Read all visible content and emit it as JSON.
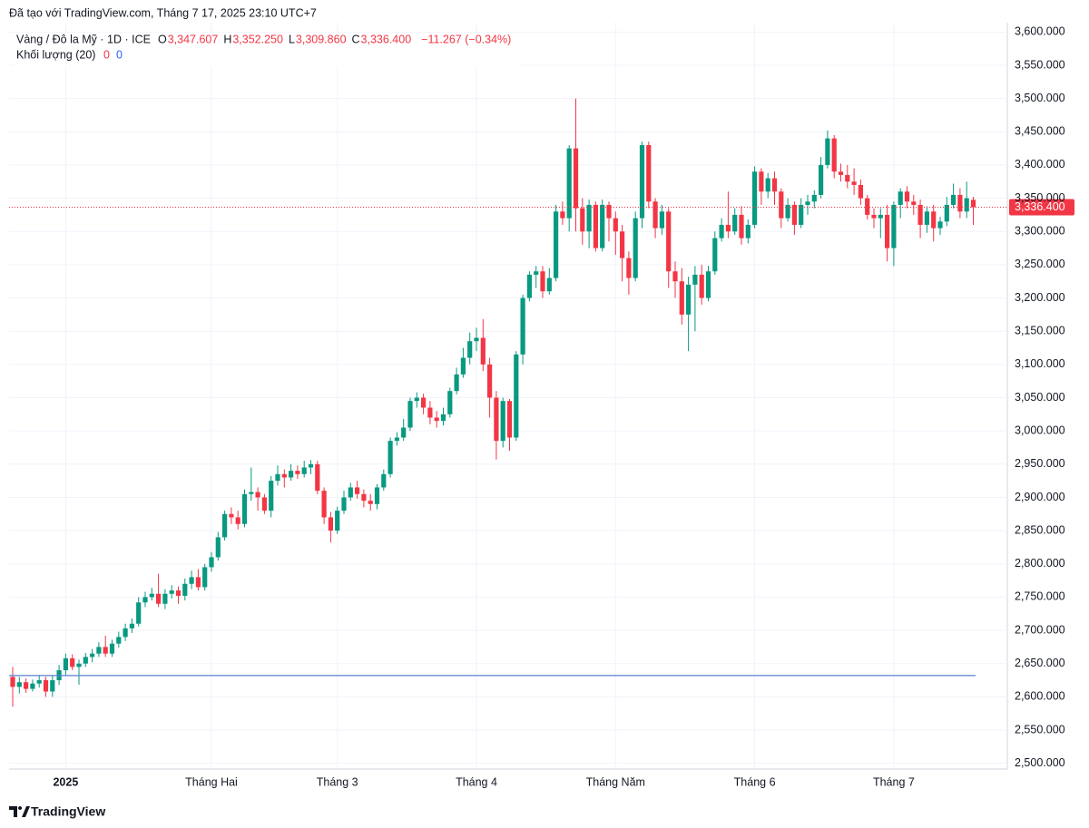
{
  "header": {
    "credit": "Đã tạo với TradingView.com, Tháng 7 17, 2025 23:10 UTC+7",
    "footer": "TradingView"
  },
  "legend": {
    "symbol": "Vàng / Đô la Mỹ · 1D · ICE",
    "o_label": "O",
    "o": "3,347.607",
    "h_label": "H",
    "h": "3,352.250",
    "l_label": "L",
    "l": "3,309.860",
    "c_label": "C",
    "c": "3,336.400",
    "change": "−11.267 (−0.34%)",
    "volume_label": "Khối lượng (20)",
    "volume_a": "0",
    "volume_b": "0"
  },
  "chart_data": {
    "type": "candlestick",
    "up_color": "#089981",
    "down_color": "#f23645",
    "grid": true,
    "categories": [
      null,
      null,
      null,
      null,
      null,
      null,
      null,
      null,
      "2025",
      null,
      null,
      null,
      null,
      null,
      null,
      null,
      null,
      null,
      null,
      null,
      null,
      null,
      null,
      null,
      null,
      null,
      null,
      null,
      null,
      null,
      "Tháng Hai",
      null,
      null,
      null,
      null,
      null,
      null,
      null,
      null,
      null,
      null,
      null,
      null,
      null,
      null,
      null,
      null,
      null,
      null,
      "Tháng 3",
      null,
      null,
      null,
      null,
      null,
      null,
      null,
      null,
      null,
      null,
      null,
      null,
      null,
      null,
      null,
      null,
      null,
      null,
      null,
      null,
      "Tháng 4",
      null,
      null,
      null,
      null,
      null,
      null,
      null,
      null,
      null,
      null,
      null,
      null,
      null,
      null,
      null,
      null,
      null,
      null,
      null,
      null,
      "Tháng Năm",
      null,
      null,
      null,
      null,
      null,
      null,
      null,
      null,
      null,
      null,
      null,
      null,
      null,
      null,
      null,
      null,
      null,
      null,
      null,
      null,
      "Tháng 6",
      null,
      null,
      null,
      null,
      null,
      null,
      null,
      null,
      null,
      null,
      null,
      null,
      null,
      null,
      null,
      null,
      null,
      null,
      null,
      null,
      "Tháng 7",
      null,
      null,
      null,
      null,
      null,
      null,
      null,
      null,
      null,
      null,
      null,
      null
    ],
    "open": [
      2630,
      2615,
      2622,
      2612,
      2620,
      2625,
      2608,
      2625,
      2640,
      2658,
      2645,
      2650,
      2660,
      2665,
      2675,
      2665,
      2680,
      2690,
      2703,
      2710,
      2742,
      2750,
      2755,
      2740,
      2755,
      2760,
      2752,
      2770,
      2780,
      2765,
      2795,
      2810,
      2840,
      2875,
      2870,
      2860,
      2905,
      2908,
      2900,
      2880,
      2925,
      2935,
      2930,
      2940,
      2935,
      2945,
      2950,
      2910,
      2870,
      2850,
      2880,
      2900,
      2915,
      2905,
      2895,
      2890,
      2915,
      2935,
      2985,
      2990,
      3005,
      3045,
      3050,
      3035,
      3020,
      3015,
      3025,
      3060,
      3085,
      3110,
      3135,
      3140,
      3100,
      3050,
      2985,
      3045,
      2990,
      3115,
      3200,
      3235,
      3240,
      3210,
      3230,
      3330,
      3320,
      3425,
      3335,
      3300,
      3340,
      3275,
      3340,
      3320,
      3300,
      3260,
      3230,
      3320,
      3430,
      3345,
      3305,
      3330,
      3240,
      3225,
      3175,
      3220,
      3235,
      3200,
      3240,
      3290,
      3310,
      3300,
      3325,
      3290,
      3310,
      3390,
      3360,
      3380,
      3360,
      3320,
      3340,
      3310,
      3340,
      3345,
      3355,
      3400,
      3440,
      3390,
      3385,
      3375,
      3370,
      3350,
      3325,
      3320,
      3325,
      3275,
      3340,
      3360,
      3345,
      3340,
      3310,
      3330,
      3305,
      3315,
      3340,
      3355,
      3330,
      3347.607
    ],
    "high": [
      2645,
      2630,
      2628,
      2626,
      2632,
      2630,
      2632,
      2648,
      2665,
      2664,
      2656,
      2666,
      2672,
      2682,
      2692,
      2686,
      2698,
      2710,
      2718,
      2750,
      2758,
      2764,
      2785,
      2762,
      2768,
      2766,
      2778,
      2790,
      2792,
      2800,
      2818,
      2848,
      2880,
      2885,
      2880,
      2912,
      2945,
      2915,
      2905,
      2932,
      2948,
      2942,
      2950,
      2948,
      2955,
      2956,
      2955,
      2915,
      2878,
      2886,
      2910,
      2922,
      2925,
      2912,
      2905,
      2920,
      2942,
      2990,
      2998,
      3018,
      3050,
      3058,
      3056,
      3045,
      3030,
      3035,
      3065,
      3095,
      3125,
      3148,
      3155,
      3168,
      3110,
      3060,
      3050,
      3048,
      3120,
      3205,
      3240,
      3248,
      3248,
      3245,
      3340,
      3345,
      3430,
      3500,
      3350,
      3348,
      3345,
      3348,
      3345,
      3330,
      3310,
      3270,
      3330,
      3435,
      3435,
      3350,
      3340,
      3335,
      3255,
      3245,
      3232,
      3248,
      3250,
      3248,
      3300,
      3320,
      3360,
      3335,
      3338,
      3318,
      3398,
      3395,
      3388,
      3390,
      3365,
      3350,
      3345,
      3350,
      3355,
      3362,
      3412,
      3452,
      3445,
      3402,
      3400,
      3395,
      3378,
      3355,
      3335,
      3335,
      3340,
      3345,
      3365,
      3368,
      3355,
      3348,
      3338,
      3340,
      3322,
      3352,
      3372,
      3365,
      3375,
      3352.25
    ],
    "low": [
      2585,
      2605,
      2606,
      2608,
      2614,
      2600,
      2600,
      2618,
      2632,
      2640,
      2618,
      2645,
      2652,
      2660,
      2660,
      2660,
      2674,
      2684,
      2696,
      2706,
      2735,
      2745,
      2735,
      2732,
      2748,
      2740,
      2745,
      2762,
      2760,
      2760,
      2788,
      2805,
      2835,
      2860,
      2852,
      2855,
      2895,
      2880,
      2875,
      2870,
      2918,
      2915,
      2925,
      2928,
      2930,
      2935,
      2905,
      2860,
      2832,
      2845,
      2875,
      2895,
      2898,
      2885,
      2880,
      2882,
      2910,
      2930,
      2978,
      2985,
      3000,
      3035,
      3025,
      3010,
      3005,
      3008,
      3020,
      3055,
      3080,
      3100,
      3120,
      3090,
      3020,
      2957,
      2975,
      2970,
      2985,
      3100,
      3195,
      3215,
      3200,
      3205,
      3225,
      3310,
      3300,
      3300,
      3280,
      3275,
      3270,
      3270,
      3285,
      3265,
      3225,
      3205,
      3225,
      3305,
      3335,
      3290,
      3295,
      3215,
      3200,
      3160,
      3120,
      3150,
      3190,
      3195,
      3235,
      3285,
      3290,
      3295,
      3280,
      3282,
      3305,
      3340,
      3350,
      3340,
      3305,
      3315,
      3295,
      3305,
      3325,
      3335,
      3350,
      3395,
      3380,
      3375,
      3365,
      3355,
      3340,
      3318,
      3305,
      3290,
      3255,
      3248,
      3320,
      3335,
      3325,
      3290,
      3298,
      3285,
      3295,
      3308,
      3335,
      3320,
      3320,
      3309.86
    ],
    "close": [
      2615,
      2622,
      2612,
      2620,
      2625,
      2608,
      2625,
      2640,
      2658,
      2645,
      2650,
      2660,
      2665,
      2675,
      2665,
      2680,
      2690,
      2703,
      2710,
      2742,
      2750,
      2755,
      2740,
      2755,
      2760,
      2752,
      2770,
      2780,
      2765,
      2795,
      2810,
      2840,
      2875,
      2870,
      2860,
      2905,
      2908,
      2900,
      2880,
      2925,
      2935,
      2930,
      2940,
      2935,
      2945,
      2950,
      2910,
      2870,
      2850,
      2880,
      2900,
      2915,
      2905,
      2895,
      2890,
      2915,
      2935,
      2985,
      2990,
      3005,
      3045,
      3050,
      3035,
      3020,
      3015,
      3025,
      3060,
      3085,
      3110,
      3135,
      3140,
      3100,
      3050,
      2985,
      3045,
      2990,
      3115,
      3200,
      3235,
      3240,
      3210,
      3230,
      3330,
      3320,
      3425,
      3335,
      3300,
      3340,
      3275,
      3340,
      3320,
      3300,
      3260,
      3230,
      3320,
      3430,
      3345,
      3305,
      3330,
      3240,
      3225,
      3175,
      3220,
      3235,
      3200,
      3240,
      3290,
      3310,
      3300,
      3325,
      3290,
      3310,
      3390,
      3360,
      3380,
      3360,
      3320,
      3340,
      3310,
      3340,
      3345,
      3355,
      3400,
      3440,
      3390,
      3385,
      3375,
      3370,
      3350,
      3325,
      3320,
      3325,
      3275,
      3340,
      3360,
      3345,
      3340,
      3310,
      3330,
      3305,
      3315,
      3340,
      3355,
      3330,
      3350,
      3336.4
    ],
    "last_price_label": "3,336.400",
    "reference_line": 2632,
    "reference_color": "#5b7fd6",
    "ylim": [
      2475,
      3625
    ],
    "yticks": [
      {
        "value": 2500,
        "label": "2,500.000"
      },
      {
        "value": 2550,
        "label": "2,550.000"
      },
      {
        "value": 2600,
        "label": "2,600.000"
      },
      {
        "value": 2650,
        "label": "2,650.000"
      },
      {
        "value": 2700,
        "label": "2,700.000"
      },
      {
        "value": 2750,
        "label": "2,750.000"
      },
      {
        "value": 2800,
        "label": "2,800.000"
      },
      {
        "value": 2850,
        "label": "2,850.000"
      },
      {
        "value": 2900,
        "label": "2,900.000"
      },
      {
        "value": 2950,
        "label": "2,950.000"
      },
      {
        "value": 3000,
        "label": "3,000.000"
      },
      {
        "value": 3050,
        "label": "3,050.000"
      },
      {
        "value": 3100,
        "label": "3,100.000"
      },
      {
        "value": 3150,
        "label": "3,150.000"
      },
      {
        "value": 3200,
        "label": "3,200.000"
      },
      {
        "value": 3250,
        "label": "3,250.000"
      },
      {
        "value": 3300,
        "label": "3,300.000"
      },
      {
        "value": 3350,
        "label": "3,350.000"
      },
      {
        "value": 3400,
        "label": "3,400.000"
      },
      {
        "value": 3450,
        "label": "3,450.000"
      },
      {
        "value": 3500,
        "label": "3,500.000"
      },
      {
        "value": 3550,
        "label": "3,550.000"
      },
      {
        "value": 3600,
        "label": "3,600.000"
      }
    ]
  }
}
